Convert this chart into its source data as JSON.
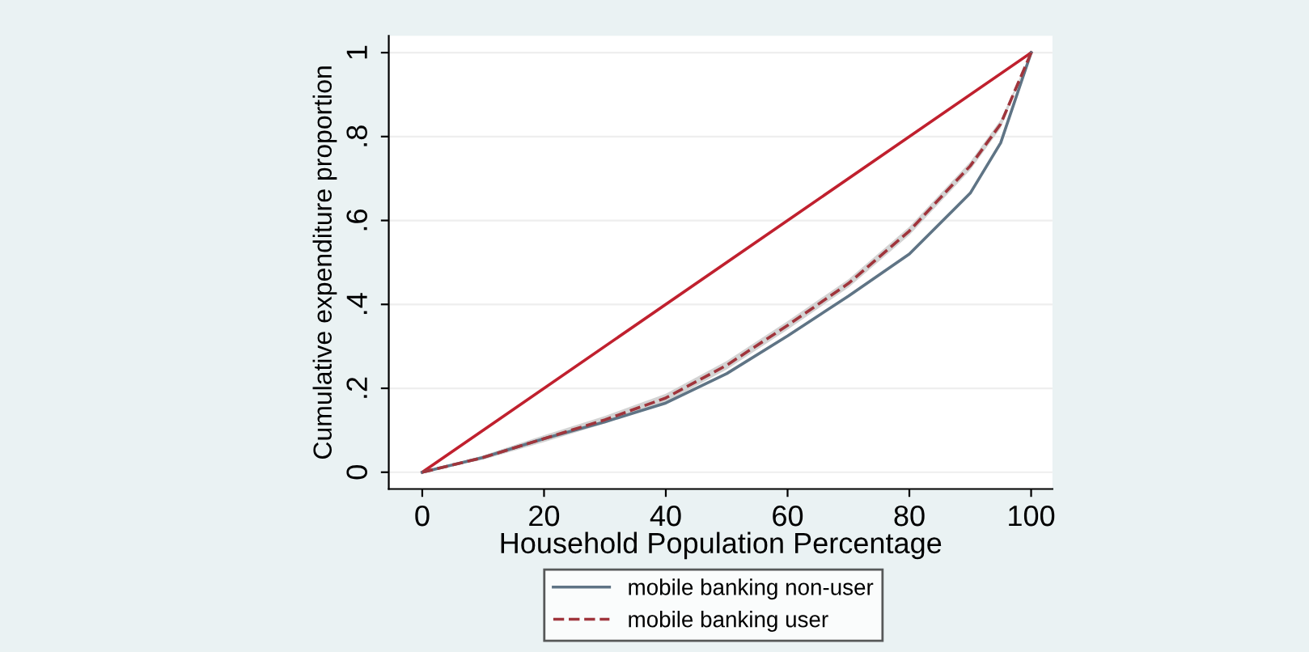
{
  "chart_data": {
    "type": "line",
    "xlabel": "Household Population Percentage",
    "ylabel": "Cumulative expenditure proportion",
    "series": [
      {
        "x": [
          0,
          100
        ],
        "values": [
          0,
          1
        ],
        "color": "#c0202e",
        "line_style": "solid"
      },
      {
        "name": "mobile banking non-user",
        "x": [
          0,
          10,
          20,
          30,
          40,
          50,
          60,
          70,
          80,
          90,
          95,
          100
        ],
        "values": [
          0,
          0.035,
          0.08,
          0.12,
          0.165,
          0.235,
          0.325,
          0.42,
          0.52,
          0.665,
          0.785,
          1
        ],
        "color": "#5f7485",
        "line_style": "solid"
      },
      {
        "name": "mobile banking user",
        "x": [
          0,
          10,
          20,
          30,
          40,
          50,
          60,
          70,
          80,
          90,
          95,
          100
        ],
        "values": [
          0,
          0.035,
          0.08,
          0.125,
          0.177,
          0.255,
          0.35,
          0.45,
          0.575,
          0.73,
          0.83,
          1
        ],
        "lower": [
          0,
          0.03,
          0.072,
          0.116,
          0.167,
          0.245,
          0.34,
          0.44,
          0.565,
          0.72,
          0.82,
          1
        ],
        "upper": [
          0,
          0.04,
          0.088,
          0.134,
          0.187,
          0.265,
          0.36,
          0.46,
          0.585,
          0.74,
          0.84,
          1
        ],
        "color": "#a0353c",
        "line_style": "dashed"
      }
    ],
    "xlim": [
      -5.5,
      103.5
    ],
    "ylim": [
      -0.04,
      1.04
    ],
    "xticks": [
      0,
      20,
      40,
      60,
      80,
      100
    ],
    "yticks": [
      0,
      {
        "value": 0.2,
        "label": ".2"
      },
      {
        "value": 0.4,
        "label": ".4"
      },
      {
        "value": 0.6,
        "label": ".6"
      },
      {
        "value": 0.8,
        "label": ".8"
      },
      1
    ],
    "grid": "y",
    "legend": "bottom",
    "marker": "none"
  }
}
